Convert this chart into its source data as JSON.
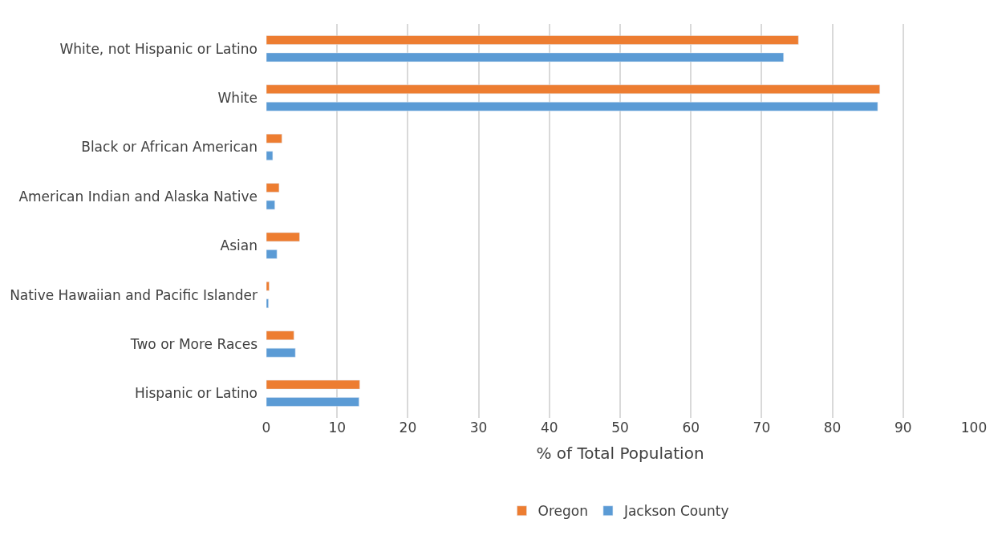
{
  "chart_data": {
    "type": "bar",
    "orientation": "horizontal",
    "xlabel": "% of Total Population",
    "categories": [
      "White, not Hispanic or Latino",
      "White",
      "Black or African American",
      "American Indian and Alaska Native",
      "Asian",
      "Native Hawaiian and Pacific Islander",
      "Two or More Races",
      "Hispanic or Latino"
    ],
    "series": [
      {
        "name": "Oregon",
        "color": "#ed7d31",
        "values": [
          75.2,
          86.7,
          2.2,
          1.8,
          4.7,
          0.4,
          3.9,
          13.2
        ]
      },
      {
        "name": "Jackson County",
        "color": "#5b9bd5",
        "values": [
          73.1,
          86.4,
          0.9,
          1.2,
          1.5,
          0.3,
          4.1,
          13.1
        ]
      }
    ],
    "xlim": [
      0,
      100
    ],
    "xticks": [
      0,
      10,
      20,
      30,
      40,
      50,
      60,
      70,
      80,
      90,
      100
    ],
    "grid": "x",
    "legend": "bottom"
  }
}
